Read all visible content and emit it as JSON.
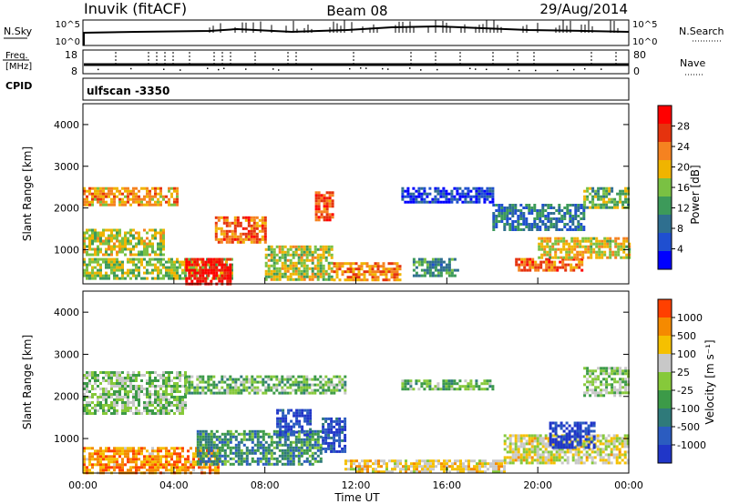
{
  "header": {
    "title_left": "Inuvik (fitACF)",
    "title_center": "Beam 08",
    "title_right": "29/Aug/2014"
  },
  "top_panels": {
    "nsky": {
      "label": "N.Sky",
      "ticks": [
        "10^5",
        "10^0"
      ]
    },
    "nsearch": {
      "label": "N.Search",
      "ticks": [
        "10^5",
        "10^0"
      ]
    },
    "freq": {
      "label_line1": "Freq.",
      "label_line2": "[MHz]",
      "ticks": [
        "18",
        "8"
      ]
    },
    "nave": {
      "label": "Nave",
      "ticks": [
        "80",
        "0"
      ]
    },
    "cpid": {
      "label": "CPID",
      "value": "ulfscan -3350"
    }
  },
  "chart_data": [
    {
      "type": "heatmap",
      "name": "power",
      "ylabel": "Slant Range [km]",
      "yticks": [
        1000,
        2000,
        3000,
        4000
      ],
      "ylim": [
        180,
        4500
      ],
      "xticks": [
        "00:00",
        "04:00",
        "08:00",
        "12:00",
        "16:00",
        "20:00",
        "00:00"
      ],
      "xlim": [
        0,
        24
      ],
      "colorbar": {
        "label": "Power [dB]",
        "ticks": [
          "28",
          "24",
          "20",
          "16",
          "12",
          "8",
          "4"
        ],
        "colors": [
          "#0000ff",
          "#1f4fd0",
          "#2f6f8f",
          "#3d9a5a",
          "#7ac143",
          "#f0b400",
          "#f58220",
          "#e5330e",
          "#ff0000"
        ]
      },
      "regions": [
        {
          "t0": 0.0,
          "t1": 4.2,
          "r0": 2050,
          "r1": 2500,
          "level": 0.7
        },
        {
          "t0": 0.0,
          "t1": 3.5,
          "r0": 900,
          "r1": 1500,
          "level": 0.55
        },
        {
          "t0": 0.0,
          "t1": 6.5,
          "r0": 300,
          "r1": 800,
          "level": 0.5
        },
        {
          "t0": 4.5,
          "t1": 6.5,
          "r0": 180,
          "r1": 800,
          "level": 1.0
        },
        {
          "t0": 5.8,
          "t1": 8.0,
          "r0": 1200,
          "r1": 1800,
          "level": 0.8
        },
        {
          "t0": 8.0,
          "t1": 11.0,
          "r0": 300,
          "r1": 1100,
          "level": 0.55
        },
        {
          "t0": 10.2,
          "t1": 11.0,
          "r0": 1700,
          "r1": 2400,
          "level": 0.85
        },
        {
          "t0": 11.0,
          "t1": 14.0,
          "r0": 300,
          "r1": 700,
          "level": 0.75
        },
        {
          "t0": 14.0,
          "t1": 18.0,
          "r0": 2150,
          "r1": 2500,
          "level": 0.1
        },
        {
          "t0": 14.5,
          "t1": 16.5,
          "r0": 400,
          "r1": 800,
          "level": 0.35
        },
        {
          "t0": 18.0,
          "t1": 22.0,
          "r0": 1500,
          "r1": 2100,
          "level": 0.25
        },
        {
          "t0": 19.0,
          "t1": 22.0,
          "r0": 500,
          "r1": 800,
          "level": 0.8
        },
        {
          "t0": 20.0,
          "t1": 24.0,
          "r0": 800,
          "r1": 1300,
          "level": 0.6
        },
        {
          "t0": 22.0,
          "t1": 24.0,
          "r0": 2000,
          "r1": 2500,
          "level": 0.45
        }
      ]
    },
    {
      "type": "heatmap",
      "name": "velocity",
      "ylabel": "Slant Range [km]",
      "yticks": [
        1000,
        2000,
        3000,
        4000
      ],
      "ylim": [
        180,
        4500
      ],
      "xlabel": "Time UT",
      "xticks": [
        "00:00",
        "04:00",
        "08:00",
        "12:00",
        "16:00",
        "20:00",
        "00:00"
      ],
      "xlim": [
        0,
        24
      ],
      "colorbar": {
        "label": "Velocity [m s⁻¹]",
        "ticks": [
          "1000",
          "500",
          "100",
          "25",
          "-25",
          "-100",
          "-500",
          "-1000"
        ],
        "colors": [
          "#2036c8",
          "#2b5cc0",
          "#2f7a7a",
          "#3c9a48",
          "#86c93a",
          "#c8c8c8",
          "#f5c000",
          "#f58a00",
          "#ff4000"
        ]
      },
      "regions": [
        {
          "t0": 0.0,
          "t1": 4.5,
          "r0": 1600,
          "r1": 2600,
          "level": 0.5
        },
        {
          "t0": 4.5,
          "t1": 11.5,
          "r0": 2100,
          "r1": 2500,
          "level": 0.45
        },
        {
          "t0": 0.0,
          "t1": 6.0,
          "r0": 180,
          "r1": 800,
          "level": 0.85
        },
        {
          "t0": 5.0,
          "t1": 10.5,
          "r0": 400,
          "r1": 1200,
          "level": 0.3
        },
        {
          "t0": 8.5,
          "t1": 10.0,
          "r0": 1100,
          "r1": 1700,
          "level": 0.05
        },
        {
          "t0": 10.5,
          "t1": 11.5,
          "r0": 700,
          "r1": 1500,
          "level": 0.05
        },
        {
          "t0": 11.5,
          "t1": 18.5,
          "r0": 180,
          "r1": 500,
          "level": 0.7
        },
        {
          "t0": 14.0,
          "t1": 18.0,
          "r0": 2200,
          "r1": 2400,
          "level": 0.45
        },
        {
          "t0": 18.5,
          "t1": 24.0,
          "r0": 400,
          "r1": 1100,
          "level": 0.65
        },
        {
          "t0": 20.5,
          "t1": 22.5,
          "r0": 800,
          "r1": 1400,
          "level": 0.0
        },
        {
          "t0": 22.0,
          "t1": 24.0,
          "r0": 2000,
          "r1": 2700,
          "level": 0.5
        }
      ]
    }
  ]
}
